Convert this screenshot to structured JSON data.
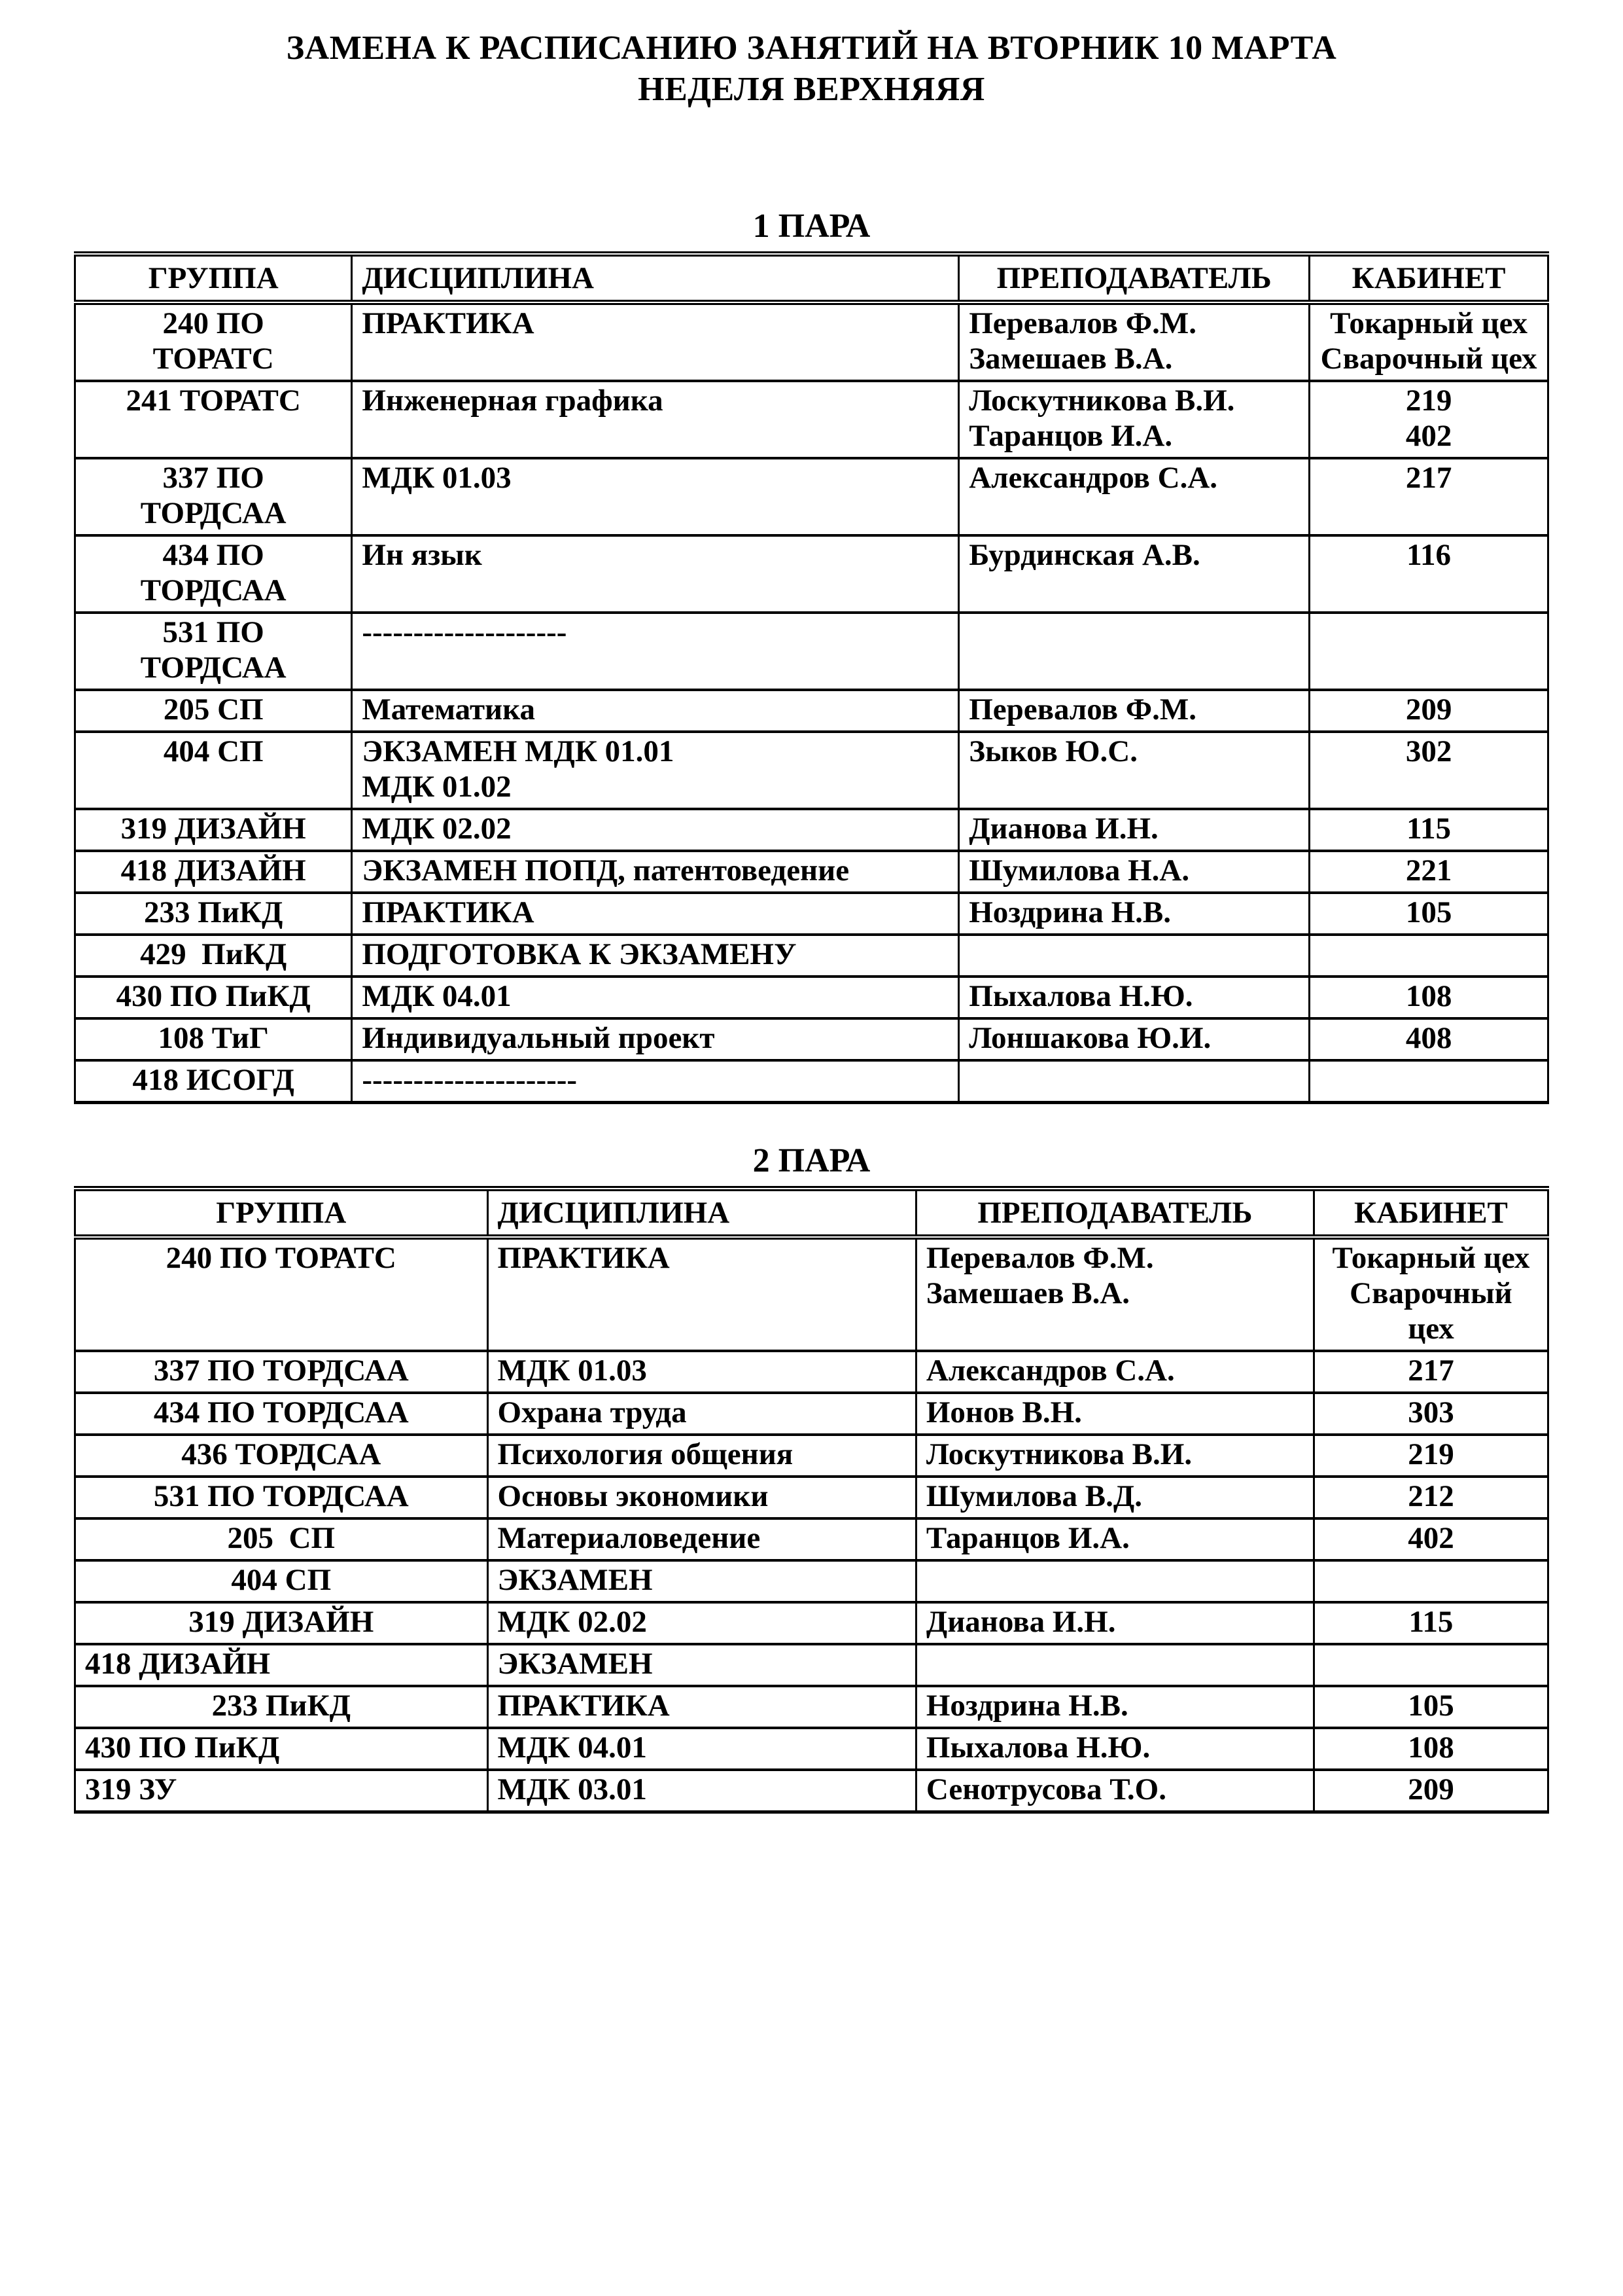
{
  "document": {
    "title_line1": "ЗАМЕНА К РАСПИСАНИЮ ЗАНЯТИЙ НА ВТОРНИК 10 МАРТА",
    "title_line2": "НЕДЕЛЯ ВЕРХНЯЯЯ"
  },
  "tables": [
    {
      "caption": "1 ПАРА",
      "headers": [
        "ГРУППА",
        "ДИСЦИПЛИНА",
        "ПРЕПОДАВАТЕЛЬ",
        "КАБИНЕТ"
      ],
      "rows": [
        {
          "group": [
            "240 ПО",
            "ТОРАТС"
          ],
          "discipline": [
            "ПРАКТИКА"
          ],
          "teacher": [
            "Перевалов Ф.М.",
            "Замешаев В.А."
          ],
          "room": [
            "Токарный цех",
            "Сварочный цех"
          ]
        },
        {
          "group": [
            "241 ТОРАТС"
          ],
          "discipline": [
            "Инженерная графика"
          ],
          "teacher": [
            "Лоскутникова В.И.",
            "Таранцов И.А."
          ],
          "room": [
            "219",
            "402"
          ]
        },
        {
          "group": [
            "337 ПО",
            "ТОРДСАА"
          ],
          "discipline": [
            "МДК 01.03"
          ],
          "teacher": [
            "Александров С.А."
          ],
          "room": [
            "217"
          ]
        },
        {
          "group": [
            "434 ПО",
            "ТОРДСАА"
          ],
          "discipline": [
            "Ин язык"
          ],
          "teacher": [
            "Бурдинская А.В."
          ],
          "room": [
            "116"
          ]
        },
        {
          "group": [
            "531 ПО",
            "ТОРДСАА"
          ],
          "discipline": [
            "--------------------"
          ],
          "teacher": [],
          "room": []
        },
        {
          "group": [
            "205 СП"
          ],
          "discipline": [
            "Математика"
          ],
          "teacher": [
            "Перевалов Ф.М."
          ],
          "room": [
            "209"
          ]
        },
        {
          "group": [
            "404 СП"
          ],
          "discipline": [
            "ЭКЗАМЕН МДК 01.01",
            "МДК 01.02"
          ],
          "teacher": [
            "Зыков Ю.С."
          ],
          "room": [
            "302"
          ]
        },
        {
          "group": [
            "319 ДИЗАЙН"
          ],
          "discipline": [
            "МДК 02.02"
          ],
          "teacher": [
            "Дианова И.Н."
          ],
          "room": [
            "115"
          ]
        },
        {
          "group": [
            "418 ДИЗАЙН"
          ],
          "discipline": [
            "ЭКЗАМЕН ПОПД, патентоведение"
          ],
          "teacher": [
            "Шумилова Н.А."
          ],
          "room": [
            "221"
          ]
        },
        {
          "group": [
            "233 ПиКД"
          ],
          "discipline": [
            "ПРАКТИКА"
          ],
          "teacher": [
            "Ноздрина Н.В."
          ],
          "room": [
            "105"
          ]
        },
        {
          "group": [
            "429  ПиКД"
          ],
          "discipline": [
            "ПОДГОТОВКА К ЭКЗАМЕНУ"
          ],
          "teacher": [],
          "room": []
        },
        {
          "group": [
            "430 ПО ПиКД"
          ],
          "discipline": [
            "МДК 04.01"
          ],
          "teacher": [
            "Пыхалова Н.Ю."
          ],
          "room": [
            "108"
          ]
        },
        {
          "group": [
            "108 ТиГ"
          ],
          "discipline": [
            "Индивидуальный проект"
          ],
          "teacher": [
            "Лоншакова Ю.И."
          ],
          "room": [
            "408"
          ]
        },
        {
          "group": [
            "418 ИСОГД"
          ],
          "discipline": [
            "---------------------"
          ],
          "teacher": [],
          "room": []
        }
      ]
    },
    {
      "caption": "2 ПАРА",
      "headers": [
        "ГРУППА",
        "ДИСЦИПЛИНА",
        "ПРЕПОДАВАТЕЛЬ",
        "КАБИНЕТ"
      ],
      "rows": [
        {
          "group": [
            "240 ПО ТОРАТС"
          ],
          "discipline": [
            "ПРАКТИКА"
          ],
          "teacher": [
            "Перевалов Ф.М.",
            "Замешаев В.А."
          ],
          "room": [
            "Токарный цех",
            "Сварочный цех"
          ]
        },
        {
          "group": [
            "337 ПО ТОРДСАА"
          ],
          "discipline": [
            "МДК 01.03"
          ],
          "teacher": [
            "Александров С.А."
          ],
          "room": [
            "217"
          ]
        },
        {
          "group": [
            "434 ПО ТОРДСАА"
          ],
          "discipline": [
            "Охрана труда"
          ],
          "teacher": [
            "Ионов В.Н."
          ],
          "room": [
            "303"
          ]
        },
        {
          "group": [
            "436 ТОРДСАА"
          ],
          "discipline": [
            "Психология общения"
          ],
          "teacher": [
            "Лоскутникова В.И."
          ],
          "room": [
            "219"
          ]
        },
        {
          "group": [
            "531 ПО ТОРДСАА"
          ],
          "discipline": [
            "Основы экономики"
          ],
          "teacher": [
            "Шумилова В.Д."
          ],
          "room": [
            "212"
          ]
        },
        {
          "group": [
            "205  СП"
          ],
          "discipline": [
            "Материаловедение"
          ],
          "teacher": [
            "Таранцов И.А."
          ],
          "room": [
            "402"
          ]
        },
        {
          "group": [
            "404 СП"
          ],
          "discipline": [
            "ЭКЗАМЕН"
          ],
          "teacher": [],
          "room": []
        },
        {
          "group": [
            "319 ДИЗАЙН"
          ],
          "discipline": [
            "МДК 02.02"
          ],
          "teacher": [
            "Дианова И.Н."
          ],
          "room": [
            "115"
          ]
        },
        {
          "group": [
            "418 ДИЗАЙН"
          ],
          "group_align": "left",
          "discipline": [
            "ЭКЗАМЕН"
          ],
          "teacher": [],
          "room": []
        },
        {
          "group": [
            "233 ПиКД"
          ],
          "discipline": [
            "ПРАКТИКА"
          ],
          "teacher": [
            "Ноздрина Н.В."
          ],
          "room": [
            "105"
          ]
        },
        {
          "group": [
            "430 ПО ПиКД"
          ],
          "group_align": "left",
          "discipline": [
            "МДК 04.01"
          ],
          "teacher": [
            "Пыхалова Н.Ю."
          ],
          "room": [
            "108"
          ]
        },
        {
          "group": [
            "319 ЗУ"
          ],
          "group_align": "left",
          "discipline": [
            "МДК 03.01"
          ],
          "teacher": [
            "Сенотрусова Т.О."
          ],
          "room": [
            "209"
          ]
        }
      ]
    }
  ]
}
